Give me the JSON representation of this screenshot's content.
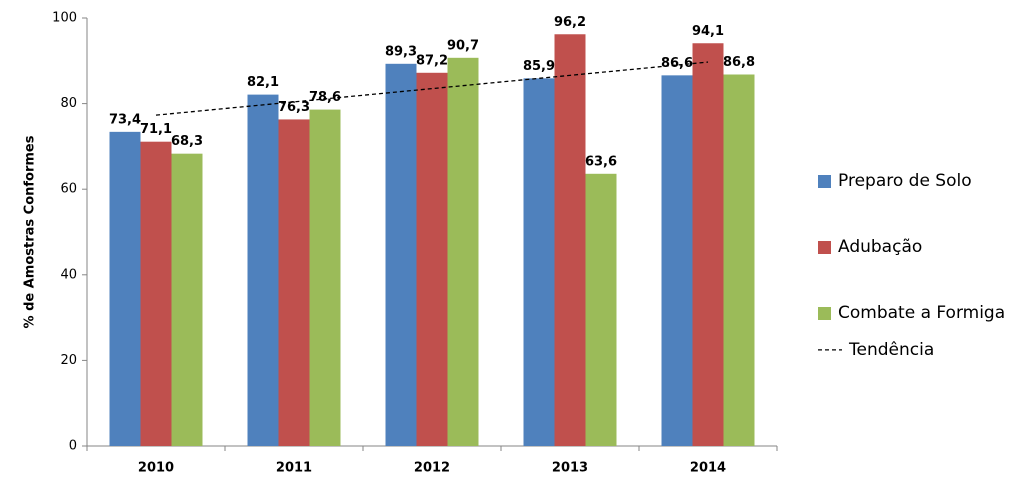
{
  "chart_data": {
    "type": "bar",
    "y_label": "% de Amostras Conformes",
    "categories": [
      "2010",
      "2011",
      "2012",
      "2013",
      "2014"
    ],
    "series": [
      {
        "name": "Preparo de Solo",
        "color": "#4f81bd",
        "values": [
          73.4,
          82.1,
          89.3,
          85.9,
          86.6
        ],
        "value_labels": [
          "73,4",
          "82,1",
          "89,3",
          "85,9",
          "86,6"
        ]
      },
      {
        "name": "Adubação",
        "color": "#c0504d",
        "values": [
          71.1,
          76.3,
          87.2,
          96.2,
          94.1
        ],
        "value_labels": [
          "71,1",
          "76,3",
          "87,2",
          "96,2",
          "94,1"
        ]
      },
      {
        "name": "Combate a Formiga",
        "color": "#9bbb59",
        "values": [
          68.3,
          78.6,
          90.7,
          63.6,
          86.8
        ],
        "value_labels": [
          "68,3",
          "78,6",
          "90,7",
          "63,6",
          "86,8"
        ]
      },
      {
        "name": "Tendência",
        "type": "line",
        "color": "#000000",
        "dashed": true,
        "values": [
          77.3,
          80.4,
          83.5,
          86.6,
          89.7
        ]
      }
    ],
    "ylim": [
      0,
      100
    ],
    "yticks": [
      0,
      20,
      40,
      60,
      80,
      100
    ],
    "grid": false,
    "legend": "right"
  }
}
